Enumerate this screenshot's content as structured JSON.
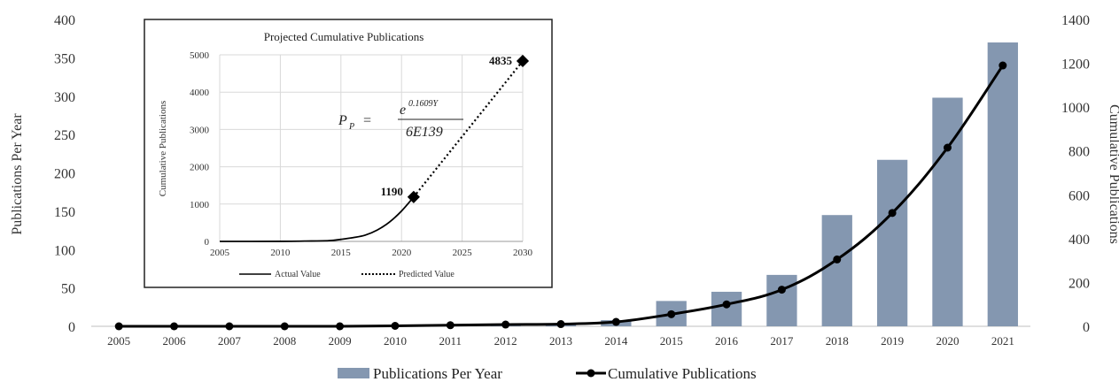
{
  "chart_data": [
    {
      "type": "bar+line",
      "categories": [
        "2005",
        "2006",
        "2007",
        "2008",
        "2009",
        "2010",
        "2011",
        "2012",
        "2013",
        "2014",
        "2015",
        "2016",
        "2017",
        "2018",
        "2019",
        "2020",
        "2021"
      ],
      "series": [
        {
          "name": "Publications Per Year",
          "kind": "bar",
          "axis": "left",
          "color": "#8497b0",
          "values": [
            0,
            0,
            0,
            0,
            0,
            1,
            2,
            3,
            2,
            8,
            33,
            45,
            67,
            145,
            217,
            298,
            370
          ]
        },
        {
          "name": "Cumulative Publications",
          "kind": "line",
          "axis": "right",
          "color": "#000000",
          "values": [
            0,
            0,
            0,
            0,
            0,
            2,
            5,
            8,
            10,
            20,
            55,
            100,
            167,
            305,
            517,
            815,
            1190
          ]
        }
      ],
      "ylabel": "Publications Per Year",
      "y2label": "Cumulative Publications",
      "ylim": [
        0,
        400
      ],
      "y2lim": [
        0,
        1400
      ],
      "yticks": [
        0,
        50,
        100,
        150,
        200,
        250,
        300,
        350,
        400
      ],
      "y2ticks": [
        0,
        200,
        400,
        600,
        800,
        1000,
        1200,
        1400
      ],
      "legend_position": "bottom",
      "grid": false
    },
    {
      "type": "line",
      "title": "Projected Cumulative Publications",
      "ylabel": "Cumulative Publications",
      "xlim": [
        2005,
        2030
      ],
      "ylim": [
        0,
        5000
      ],
      "xticks": [
        2005,
        2010,
        2015,
        2020,
        2025,
        2030
      ],
      "yticks": [
        0,
        1000,
        2000,
        3000,
        4000,
        5000
      ],
      "grid": true,
      "legend_position": "bottom",
      "series": [
        {
          "name": "Actual Value",
          "style": "solid",
          "x": [
            2005,
            2010,
            2012,
            2014,
            2015,
            2016,
            2017,
            2018,
            2019,
            2020,
            2021
          ],
          "y": [
            0,
            2,
            8,
            20,
            55,
            100,
            167,
            305,
            517,
            815,
            1190
          ]
        },
        {
          "name": "Predicted Value",
          "style": "dotted",
          "x": [
            2021,
            2030
          ],
          "y": [
            1190,
            4835
          ]
        }
      ],
      "annotations": [
        {
          "text": "1190",
          "x": 2021,
          "y": 1190
        },
        {
          "text": "4835",
          "x": 2030,
          "y": 4835
        }
      ],
      "formula": {
        "lhs": "P",
        "lhs_sub": "P",
        "numerator_base": "e",
        "numerator_exp": "0.1609Y",
        "denominator": "6E139"
      }
    }
  ]
}
